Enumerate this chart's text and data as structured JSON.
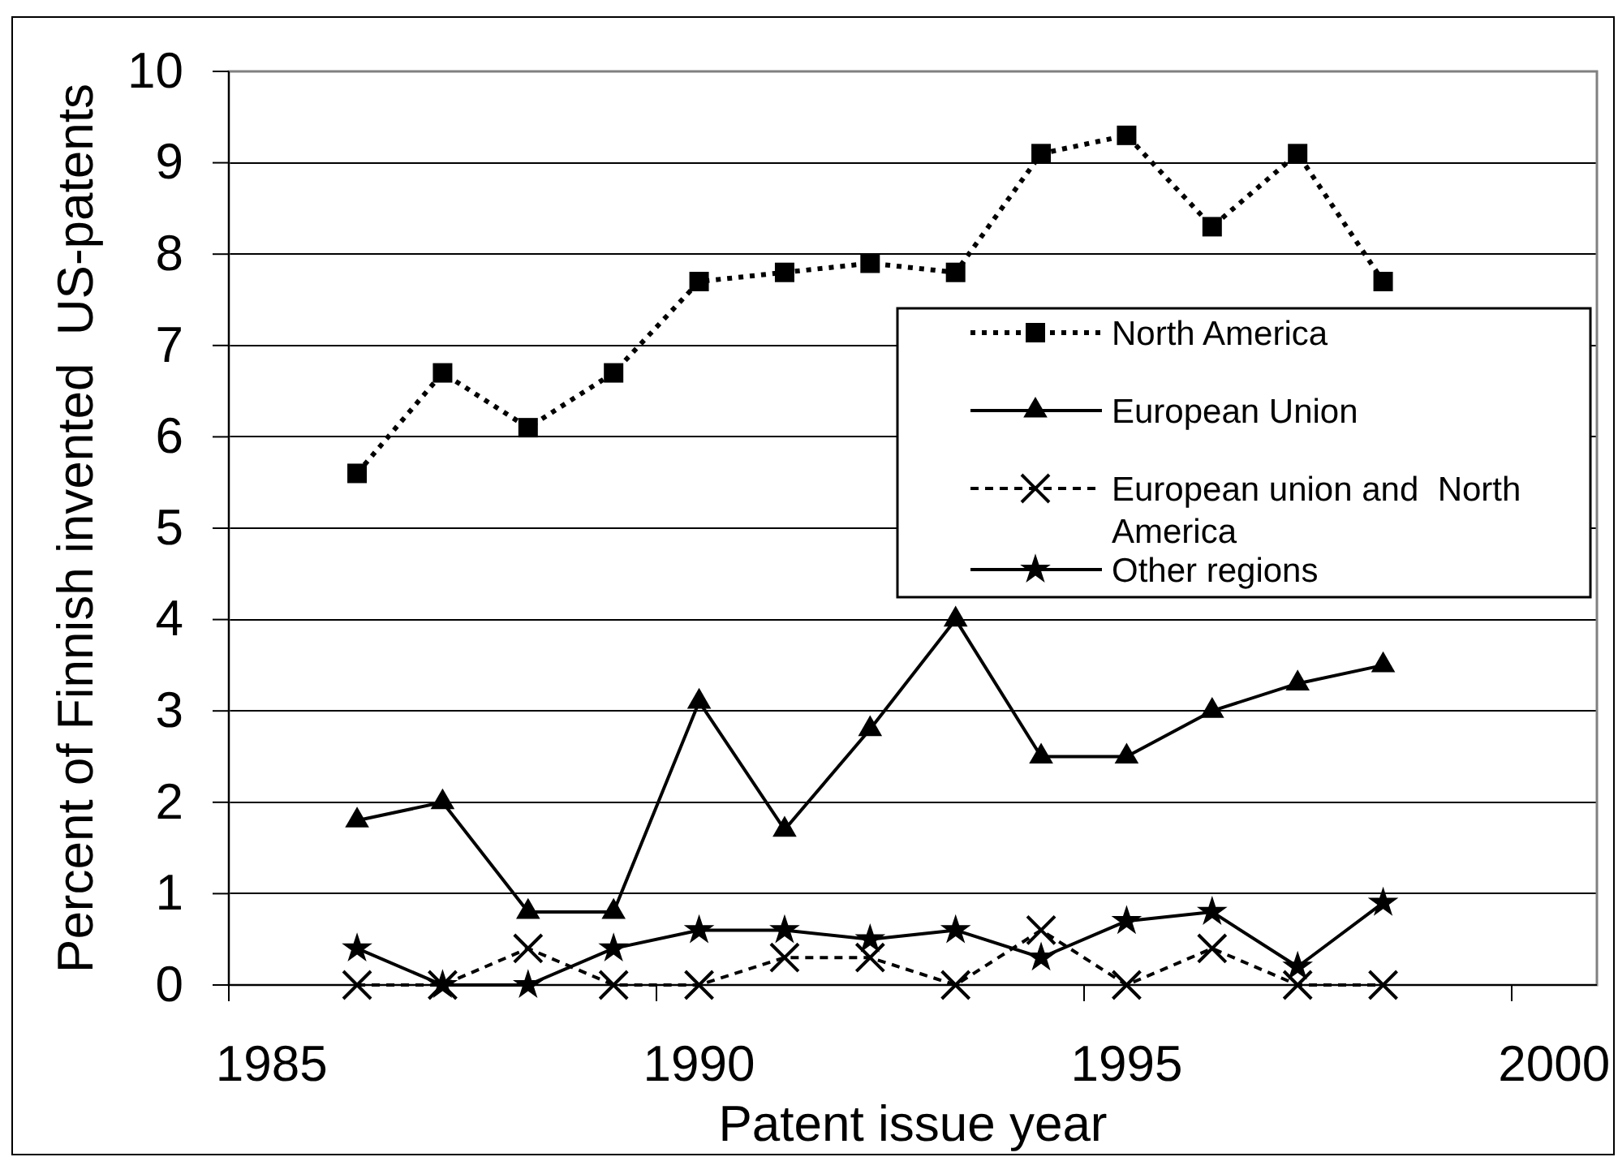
{
  "chart_data": {
    "type": "line",
    "xlabel": "Patent issue year",
    "ylabel": "Percent of Finnish invented  US-patents",
    "categories": [
      "1985",
      null,
      null,
      null,
      null,
      "1990",
      null,
      null,
      null,
      null,
      "1995",
      null,
      null,
      null,
      null,
      "2000"
    ],
    "ylim": [
      0,
      10
    ],
    "yticks": [
      0,
      1,
      2,
      3,
      4,
      5,
      6,
      7,
      8,
      9,
      10
    ],
    "grid": "y",
    "legend": "right",
    "series": [
      {
        "name": "North America",
        "color": "#000000",
        "marker": "square",
        "line_style": "dotted",
        "values": [
          null,
          5.6,
          6.7,
          6.1,
          6.7,
          7.7,
          7.8,
          7.9,
          7.8,
          9.1,
          9.3,
          8.3,
          9.1,
          7.7,
          null,
          null
        ]
      },
      {
        "name": "European Union",
        "color": "#000000",
        "marker": "triangle",
        "line_style": "solid",
        "values": [
          null,
          1.8,
          2.0,
          0.8,
          0.8,
          3.1,
          1.7,
          2.8,
          4.0,
          2.5,
          2.5,
          3.0,
          3.3,
          3.5,
          null,
          null
        ]
      },
      {
        "name": "European union and  North America",
        "color": "#000000",
        "marker": "cross",
        "line_style": "dashed",
        "values": [
          null,
          0,
          0,
          0.4,
          0,
          0,
          0.3,
          0.3,
          0,
          0.6,
          0,
          0.4,
          0,
          0,
          null,
          null
        ]
      },
      {
        "name": "Other regions",
        "color": "#000000",
        "marker": "star",
        "line_style": "solid",
        "values": [
          null,
          0.4,
          0,
          0,
          0.4,
          0.6,
          0.6,
          0.5,
          0.6,
          0.3,
          0.7,
          0.8,
          0.2,
          0.9,
          null,
          null
        ]
      }
    ]
  }
}
